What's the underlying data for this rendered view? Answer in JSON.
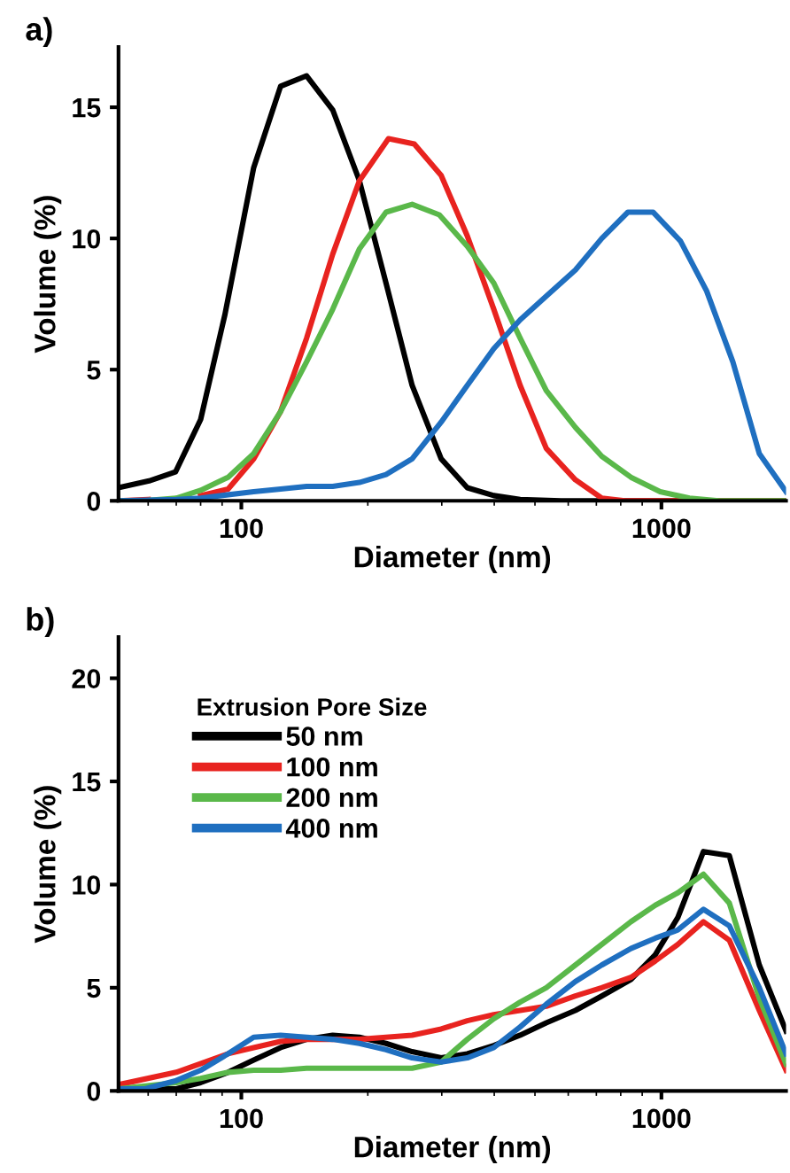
{
  "chart_data": [
    {
      "type": "line",
      "title": "a)",
      "xlabel": "Diameter (nm)",
      "ylabel": "Volume (%)",
      "log": "x",
      "xlim": [
        51,
        1980
      ],
      "xticks": [
        100,
        1000
      ],
      "ylim": [
        0,
        17.3
      ],
      "yticks": [
        0,
        5,
        10,
        15
      ],
      "grid": false,
      "legend": false,
      "line_style": "solid",
      "marker": "none",
      "series": [
        {
          "color": "#000000",
          "x": [
            51,
            60.3,
            69.7,
            80,
            91.4,
            107,
            124,
            143,
            165,
            191,
            221,
            255,
            299,
            345,
            399,
            461,
            577,
            794,
            1980
          ],
          "values": [
            0.5,
            0.76,
            1.1,
            3.1,
            7.1,
            12.7,
            15.8,
            16.2,
            14.9,
            12.2,
            8.3,
            4.4,
            1.6,
            0.5,
            0.2,
            0.05,
            0,
            0,
            0
          ]
        },
        {
          "color": "#e8231f",
          "x": [
            51,
            60,
            70,
            80,
            93,
            107,
            124,
            143,
            165,
            191,
            224,
            258,
            299,
            345,
            399,
            461,
            532,
            624,
            721,
            819,
            1980
          ],
          "values": [
            0,
            0.05,
            null,
            0.2,
            0.45,
            1.6,
            3.4,
            6.2,
            9.4,
            12.2,
            13.8,
            13.6,
            12.4,
            10.1,
            7.3,
            4.4,
            2.0,
            0.8,
            0.1,
            0,
            0
          ]
        },
        {
          "color": "#5ab84a",
          "x": [
            51,
            60,
            70,
            80,
            93,
            107,
            124,
            143,
            165,
            191,
            221,
            255,
            296,
            345,
            399,
            461,
            532,
            624,
            721,
            846,
            993,
            1166,
            1370,
            1980
          ],
          "values": [
            0,
            0.02,
            0.1,
            0.4,
            0.9,
            1.8,
            3.4,
            5.3,
            7.3,
            9.6,
            11.0,
            11.3,
            10.9,
            9.7,
            8.3,
            6.2,
            4.2,
            2.8,
            1.7,
            0.9,
            0.35,
            0.1,
            0,
            0
          ]
        },
        {
          "color": "#1f6fc0",
          "x": [
            51,
            70,
            80,
            107,
            124,
            143,
            165,
            191,
            221,
            255,
            299,
            345,
            399,
            461,
            532,
            624,
            721,
            832,
            956,
            1110,
            1281,
            1479,
            1710,
            1980
          ],
          "values": [
            0,
            0.05,
            0.1,
            0.35,
            0.45,
            0.55,
            0.55,
            0.7,
            1.0,
            1.6,
            3.0,
            4.4,
            5.8,
            6.9,
            7.8,
            8.8,
            10.0,
            11.0,
            11.0,
            9.9,
            8.0,
            5.3,
            1.8,
            0.35
          ]
        }
      ]
    },
    {
      "type": "line",
      "title": "b)",
      "xlabel": "Diameter (nm)",
      "ylabel": "Volume (%)",
      "legend_title": "Extrusion Pore Size",
      "log": "x",
      "xlim": [
        51,
        1980
      ],
      "xticks": [
        100,
        1000
      ],
      "ylim": [
        0,
        22
      ],
      "yticks": [
        0,
        5,
        10,
        15,
        20
      ],
      "grid": false,
      "legend": "top left",
      "line_style": "solid",
      "marker": "none",
      "series": [
        {
          "name": "50 nm",
          "color": "#000000",
          "x": [
            51,
            59,
            70,
            80,
            93,
            107,
            124,
            143,
            165,
            191,
            221,
            255,
            299,
            345,
            399,
            461,
            532,
            624,
            721,
            846,
            967,
            1094,
            1259,
            1451,
            1710,
            1980
          ],
          "values": [
            0.1,
            0.1,
            0.1,
            0.4,
            0.9,
            1.5,
            2.1,
            2.5,
            2.7,
            2.6,
            2.3,
            1.9,
            1.6,
            1.8,
            2.2,
            2.7,
            3.3,
            3.9,
            4.6,
            5.4,
            6.6,
            8.4,
            11.6,
            11.4,
            6.1,
            2.9
          ]
        },
        {
          "name": "100 nm",
          "color": "#e8231f",
          "x": [
            51,
            70,
            93,
            107,
            124,
            143,
            165,
            191,
            221,
            255,
            299,
            345,
            399,
            461,
            532,
            624,
            721,
            846,
            967,
            1094,
            1259,
            1451,
            1710,
            1980
          ],
          "values": [
            0.3,
            0.9,
            1.8,
            2.1,
            2.4,
            2.5,
            2.5,
            2.5,
            2.6,
            2.7,
            3.0,
            3.4,
            3.7,
            3.9,
            4.1,
            4.6,
            5.0,
            5.5,
            6.3,
            7.1,
            8.2,
            7.3,
            3.9,
            1.0
          ]
        },
        {
          "name": "200 nm",
          "color": "#5ab84a",
          "x": [
            51,
            70,
            80,
            93,
            107,
            124,
            143,
            165,
            191,
            221,
            255,
            299,
            345,
            399,
            461,
            532,
            624,
            721,
            846,
            967,
            1094,
            1259,
            1451,
            1710,
            1980
          ],
          "values": [
            0.1,
            0.4,
            0.6,
            0.9,
            1.0,
            1.0,
            1.1,
            1.1,
            1.1,
            1.1,
            1.1,
            1.4,
            2.5,
            3.5,
            4.3,
            5.0,
            6.1,
            7.1,
            8.2,
            9.0,
            9.6,
            10.5,
            9.1,
            4.5,
            1.3
          ]
        },
        {
          "name": "400 nm",
          "color": "#1f6fc0",
          "x": [
            51,
            59,
            70,
            80,
            93,
            107,
            124,
            143,
            165,
            191,
            221,
            255,
            299,
            345,
            399,
            461,
            532,
            624,
            721,
            846,
            967,
            1094,
            1259,
            1451,
            1710,
            1980
          ],
          "values": [
            0.1,
            0.1,
            0.5,
            1.0,
            1.8,
            2.6,
            2.7,
            2.6,
            2.5,
            2.3,
            2.0,
            1.6,
            1.4,
            1.6,
            2.1,
            3.1,
            4.2,
            5.3,
            6.1,
            6.9,
            7.4,
            7.8,
            8.8,
            8.0,
            5.0,
            1.8
          ]
        }
      ]
    }
  ]
}
